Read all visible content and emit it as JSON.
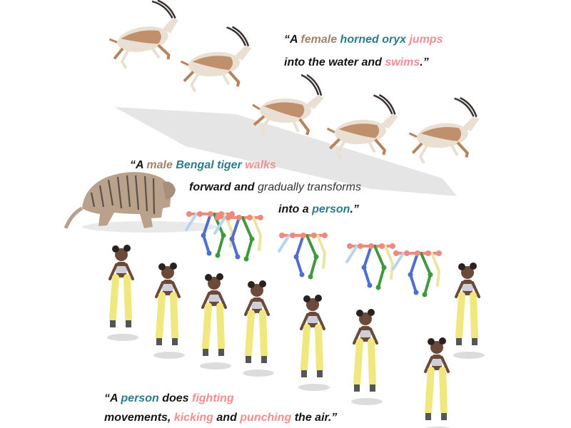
{
  "captions": {
    "oryx": {
      "line1": [
        {
          "t": "“A ",
          "c": "plain"
        },
        {
          "t": "female ",
          "c": "brown"
        },
        {
          "t": "horned oryx ",
          "c": "teal"
        },
        {
          "t": "jumps",
          "c": "pink"
        }
      ],
      "line2": [
        {
          "t": "into the water and ",
          "c": "plain"
        },
        {
          "t": "swims",
          "c": "pink"
        },
        {
          "t": ".”",
          "c": "plain"
        }
      ]
    },
    "tiger": {
      "line1": [
        {
          "t": "“A ",
          "c": "plain"
        },
        {
          "t": "male ",
          "c": "brown"
        },
        {
          "t": "Bengal tiger ",
          "c": "teal"
        },
        {
          "t": "walks",
          "c": "pink"
        }
      ],
      "line2": [
        {
          "t": "forward and ",
          "c": "plain"
        },
        {
          "t": "gradually transforms",
          "c": "light"
        }
      ],
      "line3": [
        {
          "t": "into a ",
          "c": "plain"
        },
        {
          "t": "person",
          "c": "teal"
        },
        {
          "t": ".”",
          "c": "plain"
        }
      ]
    },
    "person": {
      "line1": [
        {
          "t": "“A ",
          "c": "plain"
        },
        {
          "t": "person ",
          "c": "teal"
        },
        {
          "t": "does ",
          "c": "plain"
        },
        {
          "t": "fighting",
          "c": "pink"
        }
      ],
      "line2": [
        {
          "t": "movements, ",
          "c": "plain"
        },
        {
          "t": "kicking ",
          "c": "pink"
        },
        {
          "t": "and ",
          "c": "plain"
        },
        {
          "t": "punching ",
          "c": "pink"
        },
        {
          "t": "the air.”",
          "c": "plain"
        }
      ]
    }
  },
  "colors": {
    "oryx_body": "#e9dfd3",
    "oryx_tan": "#b9835a",
    "tiger_fur": "#b9a18c",
    "tiger_stripe": "#5c5148",
    "skeleton_red": "#ef8a7e",
    "skeleton_blue": "#4f6fd0",
    "skeleton_green": "#3e9a3c",
    "skeleton_yellow": "#ece4a3",
    "skeleton_lightblue": "#b9d4ee",
    "pants": "#f0e77f",
    "skin": "#6b4a3a",
    "shadow": "#dcdcdc"
  }
}
